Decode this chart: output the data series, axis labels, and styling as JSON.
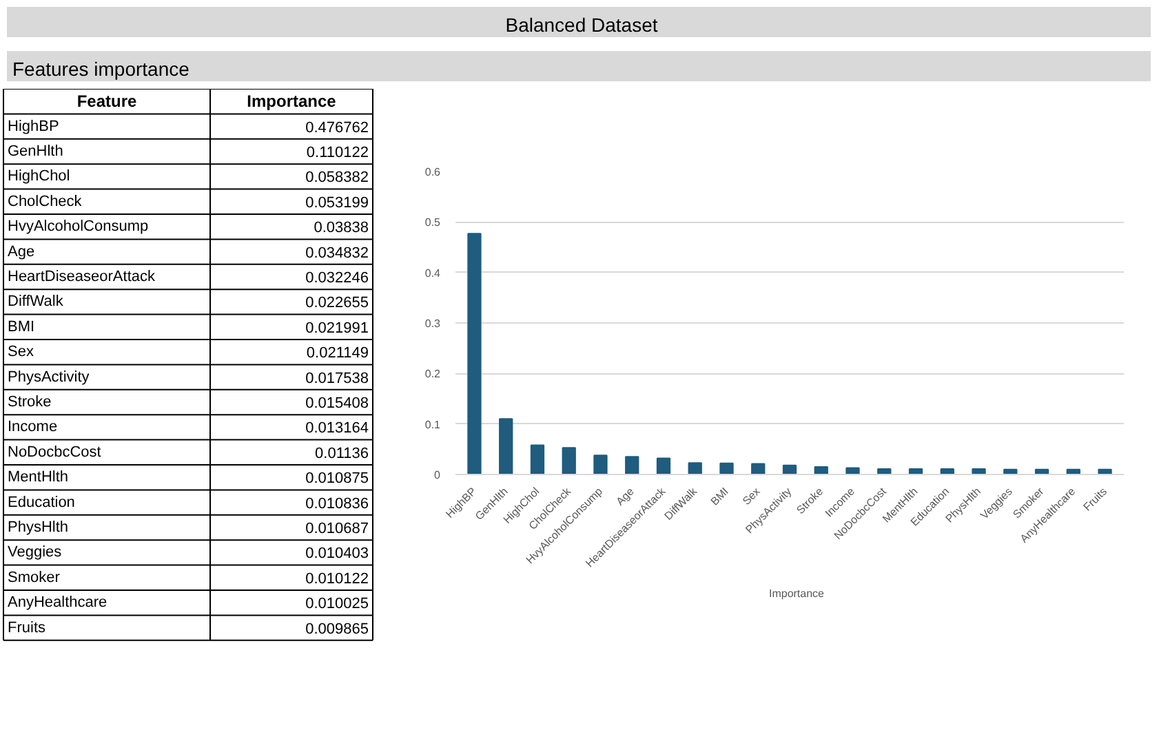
{
  "chart_data": [
    {
      "type": "other",
      "data_labels": true,
      "title": "Balanced Dataset",
      "subtitle": "Features importance",
      "annotations": [
        "Feature"
      ],
      "categories": [
        "HighBP",
        "GenHlth",
        "HighChol",
        "CholCheck",
        "HvyAlcoholConsump",
        "Age",
        "HeartDiseaseorAttack",
        "DiffWalk",
        "BMI",
        "Sex",
        "PhysActivity",
        "Stroke",
        "Income",
        "NoDocbcCost",
        "MentHlth",
        "Education",
        "PhysHlth",
        "Veggies",
        "Smoker",
        "AnyHealthcare",
        "Fruits"
      ],
      "series": [
        {
          "name": "Importance",
          "values": [
            0.476762,
            0.110122,
            0.058382,
            0.053199,
            0.03838,
            0.034832,
            0.032246,
            0.022655,
            0.021991,
            0.021149,
            0.017538,
            0.015408,
            0.013164,
            0.01136,
            0.010875,
            0.010836,
            0.010687,
            0.010403,
            0.010122,
            0.010025,
            0.009865
          ]
        }
      ]
    },
    {
      "type": "bar",
      "categories": [
        "HighBP",
        "GenHlth",
        "HighChol",
        "CholCheck",
        "HvyAlcoholConsump",
        "Age",
        "HeartDiseaseorAttack",
        "DiffWalk",
        "BMI",
        "Sex",
        "PhysActivity",
        "Stroke",
        "Income",
        "NoDocbcCost",
        "MentHlth",
        "Education",
        "PhysHlth",
        "Veggies",
        "Smoker",
        "AnyHealthcare",
        "Fruits"
      ],
      "series": [
        {
          "name": "Importance",
          "color": "#1f5c7e",
          "values": [
            0.477,
            0.11,
            0.058,
            0.053,
            0.038,
            0.035,
            0.032,
            0.023,
            0.022,
            0.021,
            0.018,
            0.015,
            0.013,
            0.011,
            0.011,
            0.011,
            0.011,
            0.01,
            0.01,
            0.01,
            0.01
          ]
        }
      ],
      "ylim": [
        0,
        0.6
      ],
      "yticks": [
        0,
        0.1,
        0.2,
        0.3,
        0.4,
        0.5,
        0.6
      ],
      "grid": "y",
      "legend": "bottom"
    }
  ]
}
